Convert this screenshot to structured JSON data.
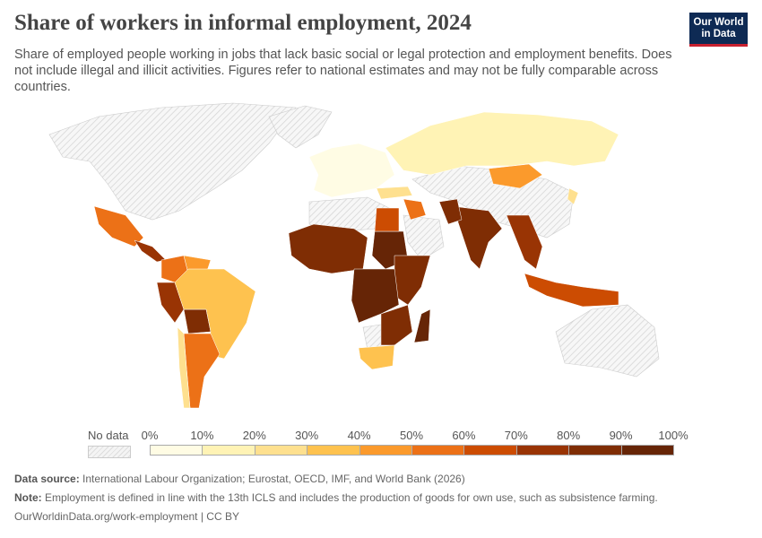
{
  "title": "Share of workers in informal employment, 2024",
  "subtitle": "Share of employed people working in jobs that lack basic social or legal protection and employment benefits. Does not include illegal and illicit activities. Figures refer to national estimates and may not be fully comparable across countries.",
  "logo": {
    "line1": "Our World",
    "line2": "in Data"
  },
  "chart_data": {
    "type": "choropleth-map",
    "title": "Share of workers in informal employment, 2024",
    "legend": {
      "no_data_label": "No data",
      "ticks": [
        "0%",
        "10%",
        "20%",
        "30%",
        "40%",
        "50%",
        "60%",
        "70%",
        "80%",
        "90%",
        "100%"
      ],
      "bin_colors": [
        "#fffce4",
        "#fff3b5",
        "#fee08f",
        "#fec24f",
        "#fb9a2c",
        "#ec7117",
        "#cc4c02",
        "#993404",
        "#7f2d04",
        "#662506"
      ]
    },
    "no_data_color": "#eeeeee",
    "regions": [
      {
        "name": "Russia",
        "value": 15
      },
      {
        "name": "Mongolia",
        "value": 45
      },
      {
        "name": "Turkey",
        "value": 27
      },
      {
        "name": "Europe",
        "value": 5
      },
      {
        "name": "Iran",
        "value": 55
      },
      {
        "name": "India",
        "value": 88
      },
      {
        "name": "Pakistan",
        "value": 85
      },
      {
        "name": "Southeast Asia",
        "value": 75
      },
      {
        "name": "Indonesia",
        "value": 60
      },
      {
        "name": "Mexico",
        "value": 55
      },
      {
        "name": "Central America",
        "value": 75
      },
      {
        "name": "Colombia",
        "value": 58
      },
      {
        "name": "Venezuela",
        "value": 45
      },
      {
        "name": "Peru",
        "value": 72
      },
      {
        "name": "Bolivia",
        "value": 82
      },
      {
        "name": "Brazil",
        "value": 38
      },
      {
        "name": "Argentina",
        "value": 50
      },
      {
        "name": "Chile",
        "value": 28
      },
      {
        "name": "West Africa",
        "value": 88
      },
      {
        "name": "Sudan",
        "value": 90
      },
      {
        "name": "Egypt",
        "value": 62
      },
      {
        "name": "East Africa",
        "value": 85
      },
      {
        "name": "Central Africa",
        "value": 92
      },
      {
        "name": "Southern Africa",
        "value": 80
      },
      {
        "name": "South Africa",
        "value": 35
      },
      {
        "name": "Madagascar",
        "value": 90
      },
      {
        "name": "Japan",
        "value": 20
      }
    ]
  },
  "footer": {
    "source_label": "Data source:",
    "source": "International Labour Organization; Eurostat, OECD, IMF, and World Bank (2026)",
    "note_label": "Note:",
    "note": "Employment is defined in line with the 13th ICLS and includes the production of goods for own use, such as subsistence farming.",
    "url": "OurWorldinData.org/work-employment | CC BY"
  }
}
